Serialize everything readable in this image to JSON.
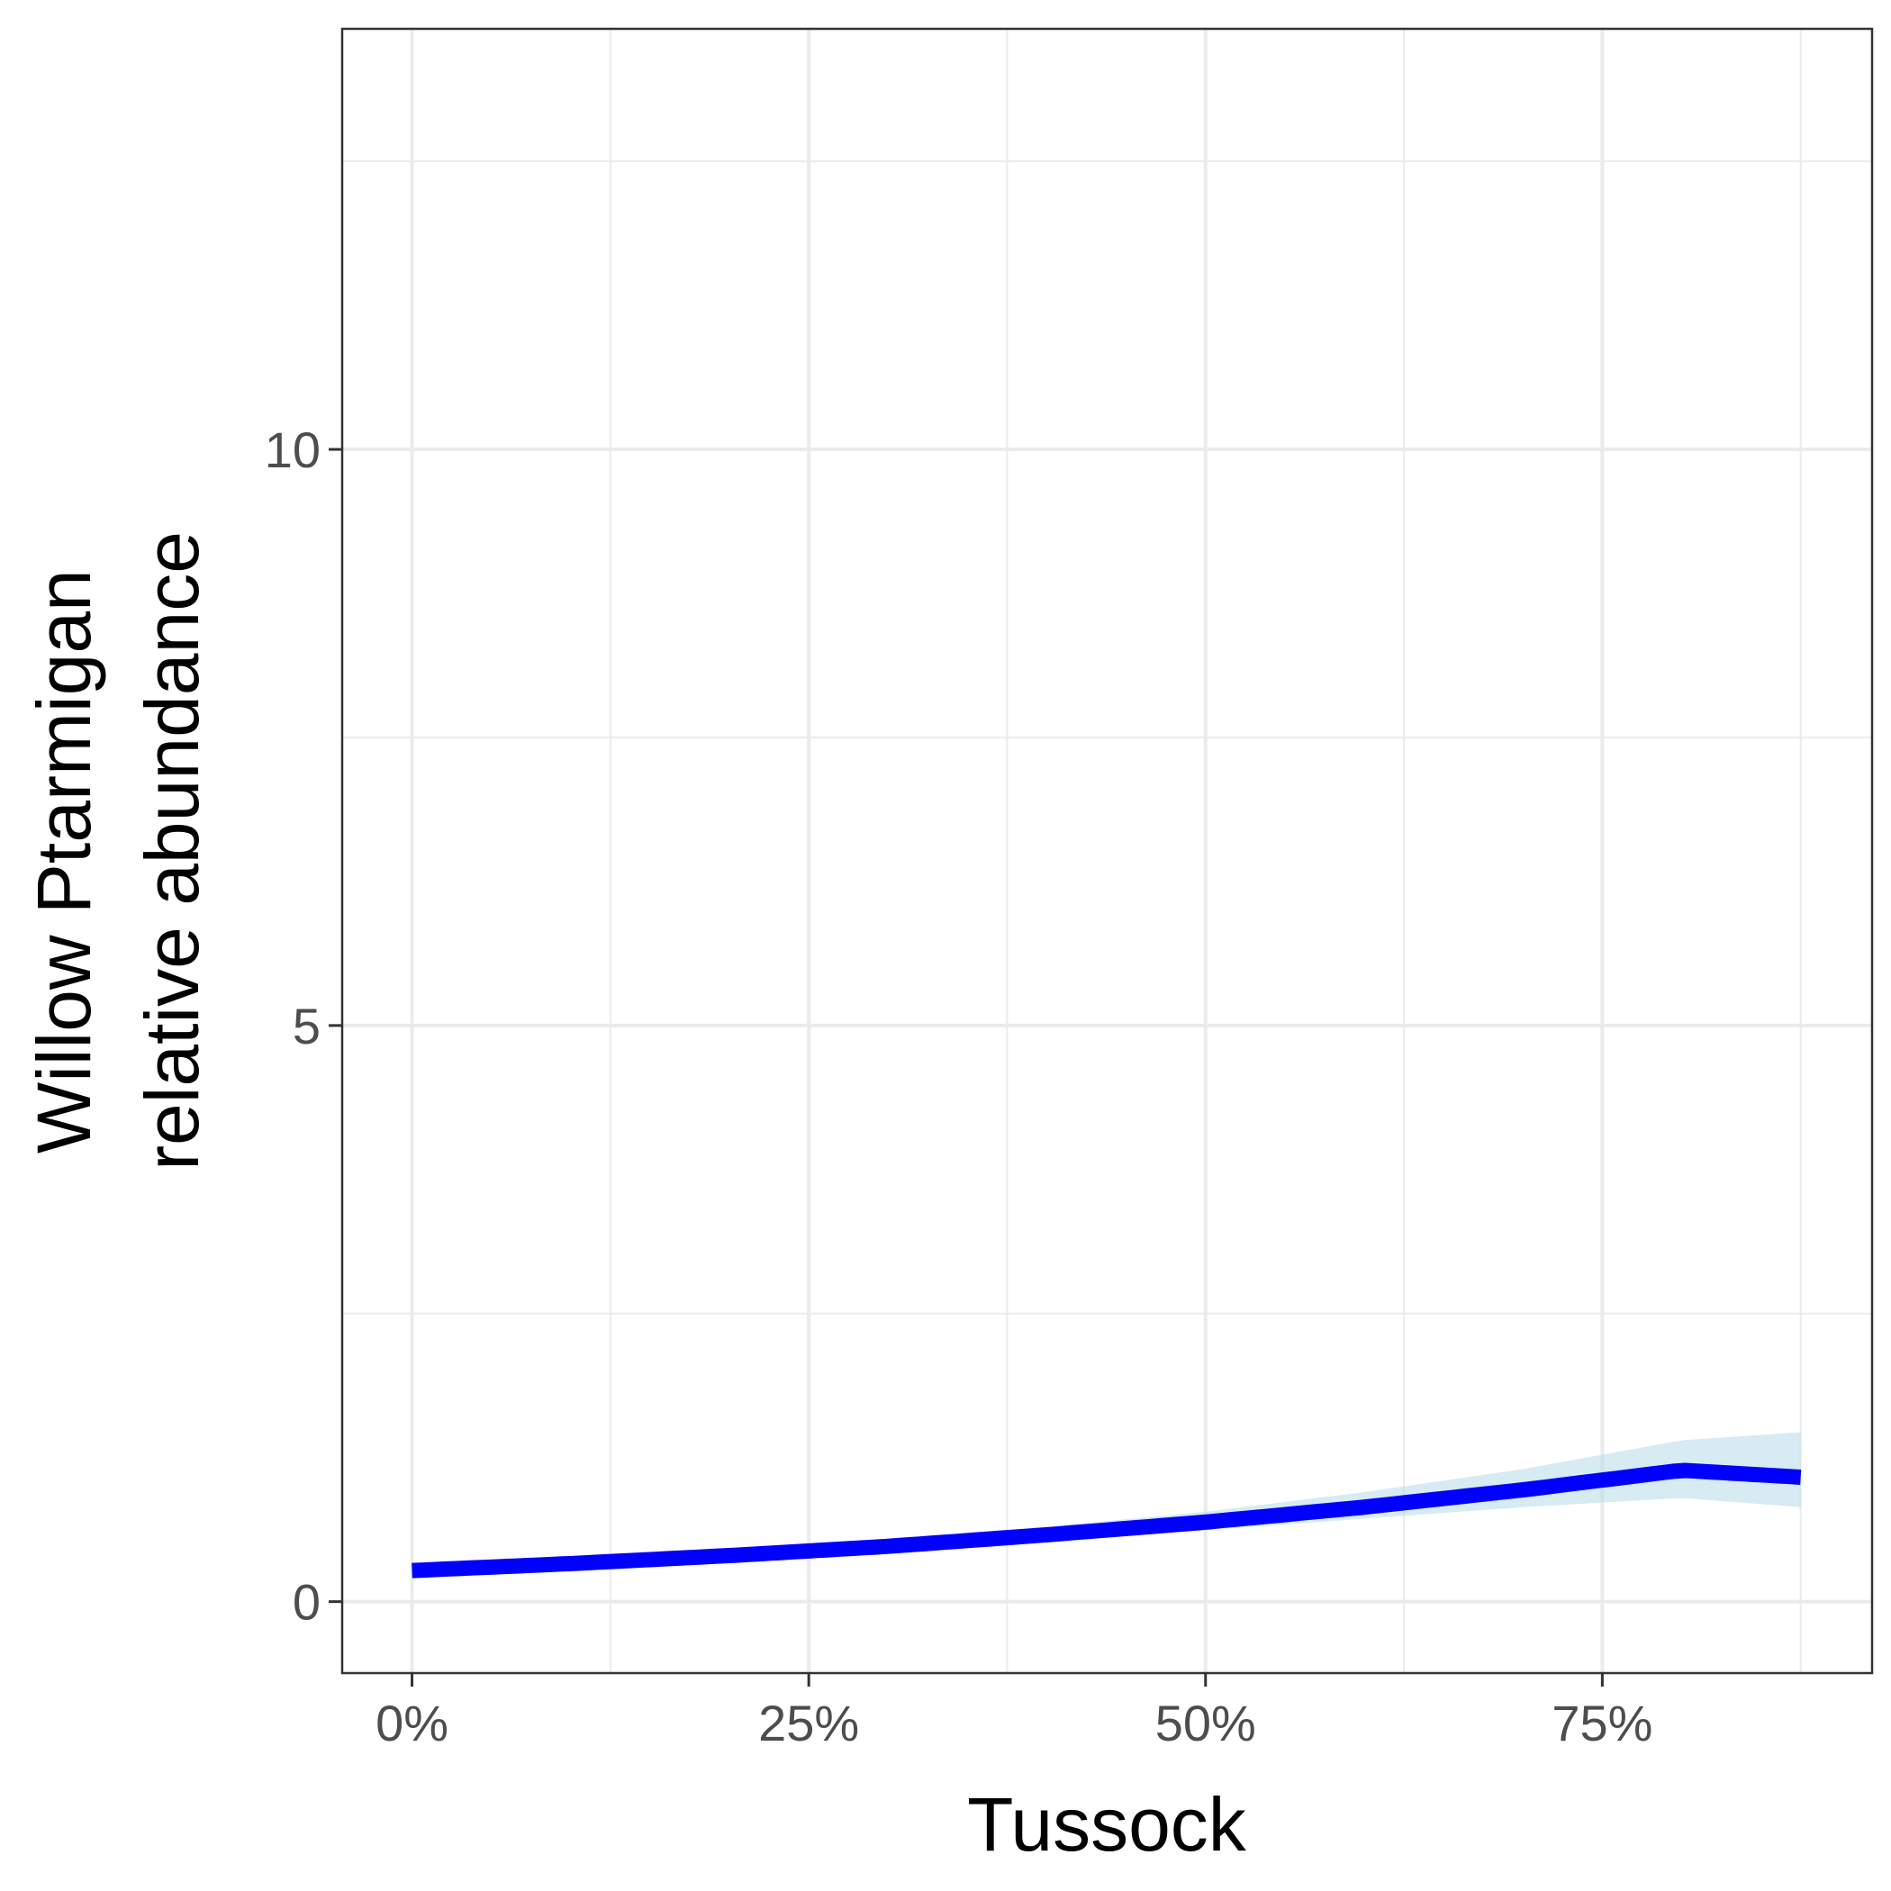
{
  "chart_data": {
    "type": "line",
    "xlabel": "Tussock",
    "ylabel_lines": [
      "Willow Ptarmigan",
      "relative abundance"
    ],
    "x_ticks": [
      {
        "value": 0,
        "label": "0%"
      },
      {
        "value": 0.25,
        "label": "25%"
      },
      {
        "value": 0.5,
        "label": "50%"
      },
      {
        "value": 0.75,
        "label": "75%"
      }
    ],
    "y_ticks": [
      {
        "value": 0,
        "label": "0"
      },
      {
        "value": 5,
        "label": "5"
      },
      {
        "value": 10,
        "label": "10"
      }
    ],
    "xlim": [
      -0.044,
      0.92
    ],
    "ylim": [
      -0.62,
      13.65
    ],
    "grid": true,
    "series": [
      {
        "color": "#0000ff",
        "ribbon_color": "#add8e6",
        "x": [
          0.0,
          0.1,
          0.2,
          0.3,
          0.4,
          0.5,
          0.6,
          0.7,
          0.8,
          0.875
        ],
        "y": [
          0.27,
          0.33,
          0.4,
          0.48,
          0.58,
          0.69,
          0.82,
          0.97,
          1.14,
          1.08
        ],
        "lower": [
          0.23,
          0.29,
          0.36,
          0.44,
          0.53,
          0.62,
          0.72,
          0.82,
          0.9,
          0.82
        ],
        "upper": [
          0.33,
          0.38,
          0.45,
          0.54,
          0.65,
          0.78,
          0.95,
          1.15,
          1.4,
          1.47
        ]
      }
    ]
  }
}
